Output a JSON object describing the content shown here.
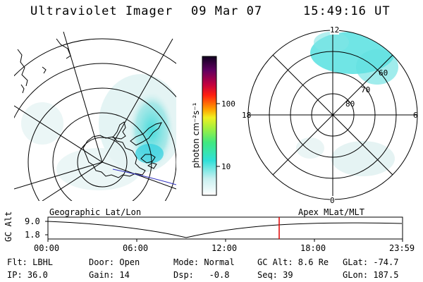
{
  "header": {
    "instrument": "Ultraviolet Imager",
    "date": "09 Mar 07",
    "time": "15:49:16 UT"
  },
  "colorbar": {
    "unit": "photon cm⁻²s⁻¹",
    "ticks": [
      "100",
      "10"
    ]
  },
  "left_panel": {
    "caption": "Geographic Lat/Lon"
  },
  "right_panel": {
    "caption": "Apex MLat/MLT",
    "mlt_labels": {
      "top": "12",
      "left": "18",
      "right": "6",
      "bottom": "0"
    },
    "lat_labels": [
      "60",
      "70",
      "80"
    ]
  },
  "timeline": {
    "y_axis_label": "GC Alt",
    "y_ticks": [
      "9.0",
      "1.8"
    ],
    "x_ticks": [
      "00:00",
      "06:00",
      "12:00",
      "18:00",
      "23:59"
    ],
    "cursor_color": "#e00000"
  },
  "info": {
    "row1": [
      "Flt: LBHL",
      "Door: Open",
      "Mode: Normal",
      "GC Alt: 8.6 Re",
      "GLat: -74.7"
    ],
    "row2": [
      "IP: 36.0",
      "Gain: 14",
      "Dsp:   -0.8",
      "Seq: 39",
      "GLon: 187.5"
    ]
  },
  "colors": {
    "aurora_main": "#40d8d8",
    "aurora_faint": "#c8ecec",
    "cursor": "#e00000"
  }
}
